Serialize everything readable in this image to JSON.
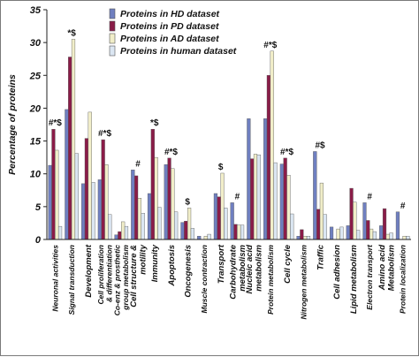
{
  "chart_data": {
    "type": "bar",
    "title": "",
    "xlabel": "",
    "ylabel": "Percentage of proteins",
    "ylim": [
      0,
      35
    ],
    "yticks": [
      0,
      5,
      10,
      15,
      20,
      25,
      30,
      35
    ],
    "legend_position": "top-right",
    "categories": [
      "Neuronal activities",
      "Signal transduction",
      "Development",
      "Cell proliferation & differentiation",
      "Co-enz & prosthetic group metabolism",
      "Cell structure & motility",
      "Immunity",
      "Apoptosis",
      "Oncogenesis",
      "Muscle contraction",
      "Transport",
      "Carbohydrate metabolism",
      "Nucleic acid metabolism",
      "Protein metabolism",
      "Cell cycle",
      "Nitrogen metabolism",
      "Traffic",
      "Cell adhesion",
      "Lipid metabolism",
      "Electron transport",
      "Amino acid Metabolism",
      "Protein localization"
    ],
    "category_labels": [
      [
        "Neuronal activities"
      ],
      [
        "Signal transduction"
      ],
      [
        "Development"
      ],
      [
        "Cell proliferation",
        "& differentiation"
      ],
      [
        "Co-enz & prosthetic",
        "group metabolism"
      ],
      [
        "Cell structure &",
        "motility"
      ],
      [
        "Immunity"
      ],
      [
        "Apoptosis"
      ],
      [
        "Oncogenesis"
      ],
      [
        "Muscle contraction"
      ],
      [
        "Transport"
      ],
      [
        "Carbohydrate",
        "metabolism"
      ],
      [
        "Nucleic acid",
        "metabolism"
      ],
      [
        "Protein metabolism"
      ],
      [
        "Cell cycle"
      ],
      [
        "Nitrogen metabolism"
      ],
      [
        "Traffic"
      ],
      [
        "Cell adhesion"
      ],
      [
        "Lipid metabolism"
      ],
      [
        "Electron transport"
      ],
      [
        "Amino acid",
        "Metabolism"
      ],
      [
        "Protein localization"
      ]
    ],
    "series": [
      {
        "name": "Proteins in HD dataset",
        "color": "#6f7fc0",
        "values": [
          11.3,
          19.8,
          8.5,
          9.1,
          0.7,
          10.6,
          7.0,
          11.4,
          2.6,
          0.5,
          7.0,
          5.6,
          18.4,
          18.4,
          11.5,
          0.5,
          13.4,
          1.9,
          2.1,
          5.6,
          2.1,
          4.2
        ]
      },
      {
        "name": "Proteins in PD dataset",
        "color": "#8a1c48",
        "values": [
          16.8,
          27.8,
          15.4,
          15.2,
          1.2,
          9.7,
          16.8,
          12.4,
          2.8,
          0.0,
          6.5,
          2.3,
          12.3,
          25.0,
          12.4,
          1.5,
          4.6,
          0.0,
          7.8,
          2.9,
          4.7,
          0.0
        ]
      },
      {
        "name": "Proteins in AD dataset",
        "color": "#f1eec9",
        "values": [
          13.6,
          30.5,
          19.4,
          11.4,
          2.7,
          6.3,
          12.5,
          10.8,
          4.8,
          0.5,
          10.1,
          2.2,
          13.0,
          28.7,
          9.8,
          0.5,
          8.6,
          1.6,
          5.7,
          1.6,
          0.8,
          0.5
        ]
      },
      {
        "name": "Proteins in human dataset",
        "color": "#dbe6f2",
        "values": [
          2.0,
          13.1,
          8.7,
          3.8,
          2.0,
          4.0,
          4.9,
          4.2,
          1.7,
          0.8,
          4.8,
          2.2,
          12.9,
          11.7,
          3.9,
          0.5,
          3.8,
          1.9,
          1.4,
          1.2,
          1.0,
          0.5
        ]
      }
    ],
    "annotations": [
      {
        "category": "Neuronal activities",
        "text": "#*$"
      },
      {
        "category": "Signal transduction",
        "text": "*$"
      },
      {
        "category": "Cell proliferation & differentiation",
        "text": "#*$"
      },
      {
        "category": "Cell structure & motility",
        "text": "#"
      },
      {
        "category": "Immunity",
        "text": "*$"
      },
      {
        "category": "Apoptosis",
        "text": "#*$"
      },
      {
        "category": "Oncogenesis",
        "text": "$"
      },
      {
        "category": "Transport",
        "text": "$"
      },
      {
        "category": "Carbohydrate metabolism",
        "text": "#"
      },
      {
        "category": "Protein metabolism",
        "text": "#*$"
      },
      {
        "category": "Cell cycle",
        "text": "#*$"
      },
      {
        "category": "Traffic",
        "text": "#$"
      },
      {
        "category": "Electron transport",
        "text": "#"
      },
      {
        "category": "Protein localization",
        "text": "#"
      }
    ]
  }
}
